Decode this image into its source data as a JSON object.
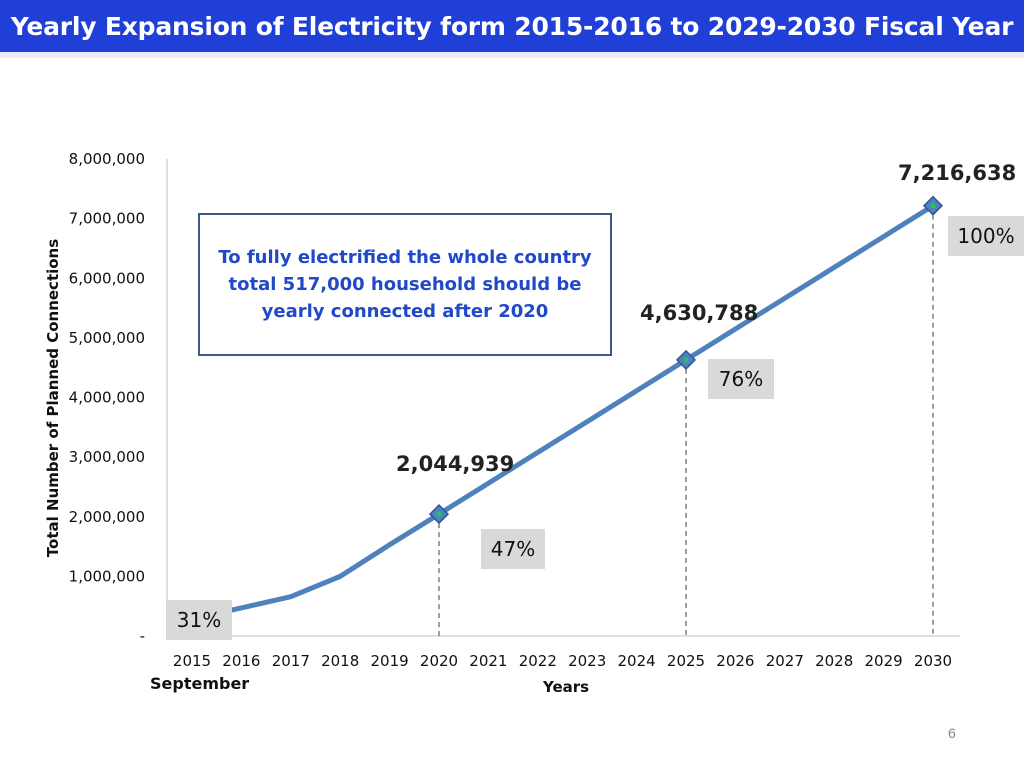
{
  "slide": {
    "title": "Yearly Expansion of Electricity form 2015-2016 to 2029-2030 Fiscal Year",
    "page_number": "6"
  },
  "annotation": {
    "callout_text": "To fully electrified the whole country total 517,000  household should be yearly connected after 2020",
    "september_label": "September"
  },
  "chart_data": {
    "type": "line",
    "title": "",
    "xlabel": "Years",
    "ylabel": "Total Number of Planned Connections",
    "ylim": [
      0,
      8000000
    ],
    "y_ticks": [
      0,
      1000000,
      2000000,
      3000000,
      4000000,
      5000000,
      6000000,
      7000000,
      8000000
    ],
    "y_tick_labels": [
      "-",
      "1,000,000",
      "2,000,000",
      "3,000,000",
      "4,000,000",
      "5,000,000",
      "6,000,000",
      "7,000,000",
      "8,000,000"
    ],
    "categories": [
      "2015",
      "2016",
      "2017",
      "2018",
      "2019",
      "2020",
      "2021",
      "2022",
      "2023",
      "2024",
      "2025",
      "2026",
      "2027",
      "2028",
      "2029",
      "2030"
    ],
    "series": [
      {
        "values": [
          290000,
          470000,
          660000,
          1000000,
          1530000,
          2044939,
          2562000,
          3080000,
          3596000,
          4113000,
          4630788,
          5148000,
          5665000,
          6182000,
          6699000,
          7216638
        ],
        "color": "#4f81bd"
      }
    ],
    "highlighted_points": [
      {
        "year": "2020",
        "value": 2044939,
        "label": "2,044,939",
        "percent": "47%"
      },
      {
        "year": "2025",
        "value": 4630788,
        "label": "4,630,788",
        "percent": "76%"
      },
      {
        "year": "2030",
        "value": 7216638,
        "label": "7,216,638",
        "percent": "100%"
      }
    ],
    "start_percent": "31%",
    "grid": false,
    "legend": "none"
  }
}
